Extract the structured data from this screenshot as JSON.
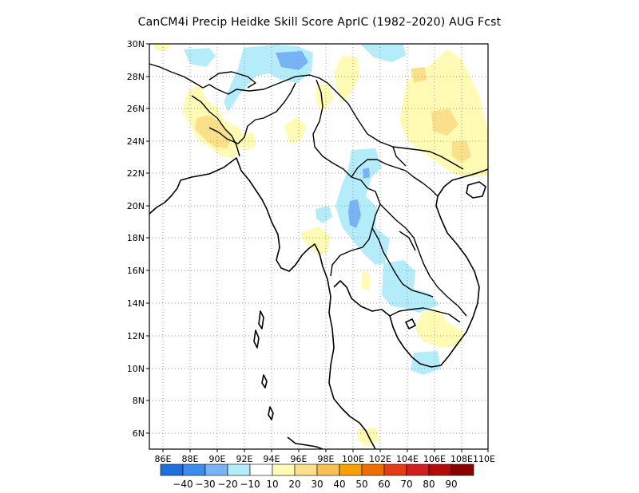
{
  "title": "CanCM4i Precip Heidke Skill Score AprIC (1982–2020) AUG Fcst",
  "map": {
    "lat_labels": [
      "30N",
      "28N",
      "26N",
      "24N",
      "22N",
      "20N",
      "18N",
      "16N",
      "14N",
      "12N",
      "10N",
      "8N",
      "6N"
    ],
    "lon_labels": [
      "86E",
      "88E",
      "90E",
      "92E",
      "94E",
      "96E",
      "98E",
      "100E",
      "102E",
      "104E",
      "106E",
      "108E",
      "110E"
    ],
    "lon_range": [
      85,
      110
    ],
    "lat_range": [
      5,
      30
    ],
    "grid": "dotted"
  },
  "colorbar": {
    "labels": [
      "−40",
      "−30",
      "−20",
      "−10",
      "10",
      "20",
      "30",
      "40",
      "50",
      "60",
      "70",
      "80",
      "90"
    ],
    "colors": [
      "#1e6ee0",
      "#3c8cf0",
      "#78b4f5",
      "#b4ecfa",
      "#ffffff",
      "#fffab4",
      "#fbe08c",
      "#f8c050",
      "#f8a000",
      "#f06e00",
      "#e63c14",
      "#d21e1e",
      "#b40a0a",
      "#8c0000"
    ]
  }
}
